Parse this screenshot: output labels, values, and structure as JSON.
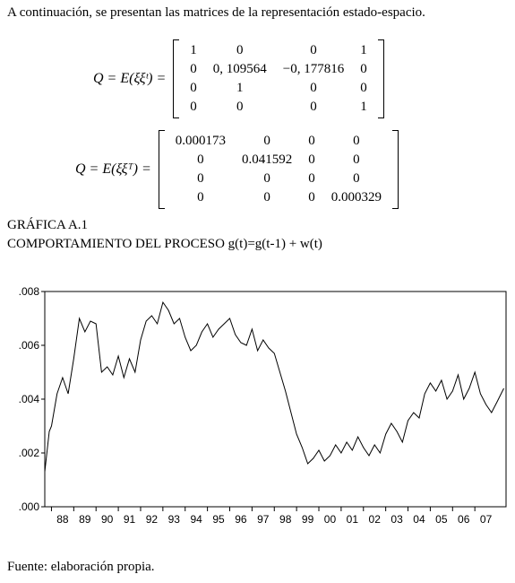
{
  "intro": "A continuación, se presentan las matrices de la representación estado-espacio.",
  "equations": [
    {
      "lhs": "Q = E(ξξᵗ) =",
      "matrix": [
        [
          "1",
          "0",
          "0",
          "1"
        ],
        [
          "0",
          "0, 109564",
          "−0, 177816",
          "0"
        ],
        [
          "0",
          "1",
          "0",
          "0"
        ],
        [
          "0",
          "0",
          "0",
          "1"
        ]
      ]
    },
    {
      "lhs": "Q = E(ξξᵀ) =",
      "matrix": [
        [
          "0.000173",
          "0",
          "0",
          "0"
        ],
        [
          "0",
          "0.041592",
          "0",
          "0"
        ],
        [
          "0",
          "0",
          "0",
          "0"
        ],
        [
          "0",
          "0",
          "0",
          "0.000329"
        ]
      ]
    }
  ],
  "chart_data": {
    "type": "line",
    "title": "GRÁFICA A.1",
    "subtitle": "COMPORTAMIENTO DEL PROCESO g(t)=g(t-1) + w(t)",
    "color": "#000000",
    "x": [
      1987.7,
      1987.9,
      1988.0,
      1988.25,
      1988.5,
      1988.75,
      1989.0,
      1989.25,
      1989.5,
      1989.75,
      1990.0,
      1990.25,
      1990.5,
      1990.75,
      1991.0,
      1991.25,
      1991.5,
      1991.75,
      1992.0,
      1992.25,
      1992.5,
      1992.75,
      1993.0,
      1993.25,
      1993.5,
      1993.75,
      1994.0,
      1994.25,
      1994.5,
      1994.75,
      1995.0,
      1995.25,
      1995.5,
      1995.75,
      1996.0,
      1996.25,
      1996.5,
      1996.75,
      1997.0,
      1997.25,
      1997.5,
      1997.75,
      1998.0,
      1998.25,
      1998.5,
      1998.75,
      1999.0,
      1999.25,
      1999.5,
      1999.75,
      2000.0,
      2000.25,
      2000.5,
      2000.75,
      2001.0,
      2001.25,
      2001.5,
      2001.75,
      2002.0,
      2002.25,
      2002.5,
      2002.75,
      2003.0,
      2003.25,
      2003.5,
      2003.75,
      2004.0,
      2004.25,
      2004.5,
      2004.75,
      2005.0,
      2005.25,
      2005.5,
      2005.75,
      2006.0,
      2006.25,
      2006.5,
      2006.75,
      2007.0,
      2007.25,
      2007.5,
      2007.75,
      2008.0,
      2008.3
    ],
    "values": [
      0.0013,
      0.0028,
      0.003,
      0.0042,
      0.0048,
      0.0042,
      0.0055,
      0.007,
      0.0065,
      0.0069,
      0.0068,
      0.005,
      0.0052,
      0.0049,
      0.0056,
      0.0048,
      0.0055,
      0.005,
      0.0062,
      0.0069,
      0.0071,
      0.0068,
      0.0076,
      0.0073,
      0.0068,
      0.007,
      0.0063,
      0.0058,
      0.006,
      0.0065,
      0.0068,
      0.0063,
      0.0066,
      0.0068,
      0.007,
      0.0064,
      0.0061,
      0.006,
      0.0066,
      0.0058,
      0.0062,
      0.0059,
      0.0057,
      0.005,
      0.0043,
      0.0035,
      0.0027,
      0.0022,
      0.0016,
      0.0018,
      0.0021,
      0.0017,
      0.0019,
      0.0023,
      0.002,
      0.0024,
      0.0021,
      0.0026,
      0.0022,
      0.0019,
      0.0023,
      0.002,
      0.0027,
      0.0031,
      0.0028,
      0.0024,
      0.0032,
      0.0035,
      0.0033,
      0.0042,
      0.0046,
      0.0043,
      0.0047,
      0.004,
      0.0043,
      0.0049,
      0.004,
      0.0044,
      0.005,
      0.0042,
      0.0038,
      0.0035,
      0.0039,
      0.0044
    ],
    "xlim": [
      1987.7,
      2008.4
    ],
    "xticks": [
      {
        "value": 1988,
        "label": "88"
      },
      {
        "value": 1989,
        "label": "89"
      },
      {
        "value": 1990,
        "label": "90"
      },
      {
        "value": 1991,
        "label": "91"
      },
      {
        "value": 1992,
        "label": "92"
      },
      {
        "value": 1993,
        "label": "93"
      },
      {
        "value": 1994,
        "label": "94"
      },
      {
        "value": 1995,
        "label": "95"
      },
      {
        "value": 1996,
        "label": "96"
      },
      {
        "value": 1997,
        "label": "97"
      },
      {
        "value": 1998,
        "label": "98"
      },
      {
        "value": 1999,
        "label": "99"
      },
      {
        "value": 2000,
        "label": "00"
      },
      {
        "value": 2001,
        "label": "01"
      },
      {
        "value": 2002,
        "label": "02"
      },
      {
        "value": 2003,
        "label": "03"
      },
      {
        "value": 2004,
        "label": "04"
      },
      {
        "value": 2005,
        "label": "05"
      },
      {
        "value": 2006,
        "label": "06"
      },
      {
        "value": 2007,
        "label": "07"
      }
    ],
    "ylim": [
      0,
      0.008
    ],
    "yticks": [
      {
        "value": 0,
        "label": ".000"
      },
      {
        "value": 0.002,
        "label": ".002"
      },
      {
        "value": 0.004,
        "label": ".004"
      },
      {
        "value": 0.006,
        "label": ".006"
      },
      {
        "value": 0.008,
        "label": ".008"
      }
    ]
  },
  "source": "Fuente: elaboración propia."
}
